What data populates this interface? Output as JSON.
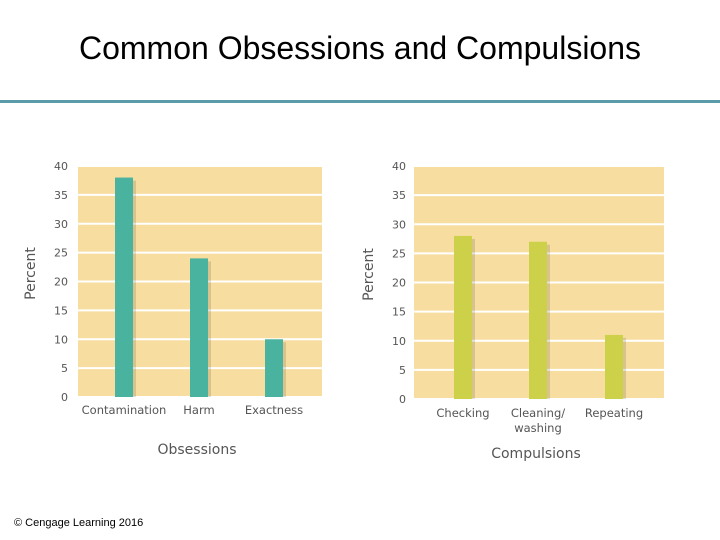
{
  "slide": {
    "title": "Common Obsessions and Compulsions",
    "copyright": "© Cengage Learning 2016"
  },
  "chart_data": [
    {
      "type": "bar",
      "categories": [
        "Contamination",
        "Harm",
        "Exactness"
      ],
      "values": [
        38,
        24,
        10
      ],
      "xlabel": "Obsessions",
      "ylabel": "Percent",
      "ylim": [
        0,
        40
      ],
      "yticks": [
        0,
        5,
        10,
        15,
        20,
        25,
        30,
        35,
        40
      ],
      "grid": true,
      "colors": {
        "bar": "#4ab3a0",
        "plot_bg": "#f7dea0",
        "grid": "#ffffff"
      }
    },
    {
      "type": "bar",
      "categories": [
        "Checking",
        "Cleaning/\nwashing",
        "Repeating"
      ],
      "values": [
        28,
        27,
        11
      ],
      "xlabel": "Compulsions",
      "ylabel": "Percent",
      "ylim": [
        0,
        40
      ],
      "yticks": [
        0,
        5,
        10,
        15,
        20,
        25,
        30,
        35,
        40
      ],
      "grid": true,
      "colors": {
        "bar": "#cdd14a",
        "plot_bg": "#f7dea0",
        "grid": "#ffffff"
      }
    }
  ]
}
